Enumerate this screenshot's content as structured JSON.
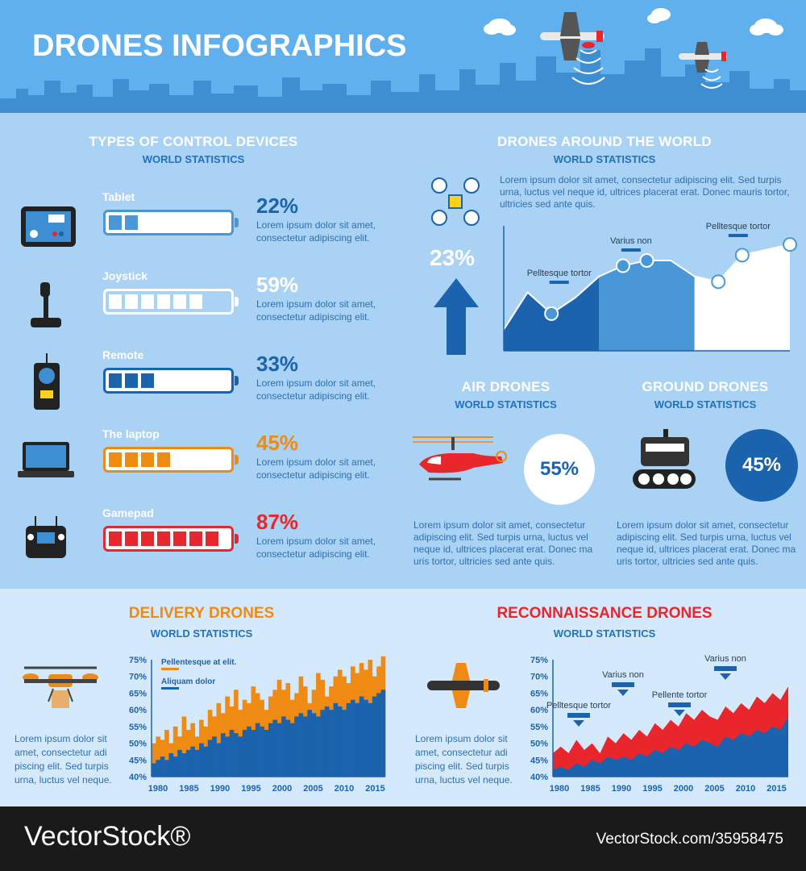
{
  "header": {
    "title": "DRONES INFOGRAPHICS"
  },
  "control": {
    "title": "TYPES OF CONTROL DEVICES",
    "subtitle": "WORLD STATISTICS",
    "items": [
      {
        "label": "Tablet",
        "percent": "22%",
        "value": 22,
        "text1": "Lorem ipsum dolor sit amet,",
        "text2": "consectetur adipiscing elit.",
        "color": "#4a97d8",
        "filled": 2
      },
      {
        "label": "Joystick",
        "percent": "59%",
        "value": 59,
        "text1": "Lorem ipsum dolor sit amet,",
        "text2": "consectetur adipiscing elit.",
        "color": "#ffffff",
        "filled": 6
      },
      {
        "label": "Remote",
        "percent": "33%",
        "value": 33,
        "text1": "Lorem ipsum dolor sit amet,",
        "text2": "consectetur adipiscing elit.",
        "color": "#1c63ad",
        "filled": 3
      },
      {
        "label": "The laptop",
        "percent": "45%",
        "value": 45,
        "text1": "Lorem ipsum dolor sit amet,",
        "text2": "consectetur adipiscing elit.",
        "color": "#ef8a12",
        "filled": 4
      },
      {
        "label": "Gamepad",
        "percent": "87%",
        "value": 87,
        "text1": "Lorem ipsum dolor sit amet,",
        "text2": "consectetur adipiscing elit.",
        "color": "#e8262b",
        "filled": 7
      }
    ]
  },
  "world": {
    "title": "DRONES AROUND THE WORLD",
    "subtitle": "WORLD STATISTICS",
    "percent": "23%",
    "text": [
      "Lorem ipsum dolor sit amet, consectetur adipiscing elit. Sed turpis",
      "urna, luctus vel neque id, ultrices placerat erat. Donec mauris tortor,",
      "ultricies sed ante quis."
    ],
    "annotations": [
      "Pelltesque tortor",
      "Varius non",
      "Pelltesque tortor"
    ]
  },
  "air": {
    "title": "AIR DRONES",
    "subtitle": "WORLD STATISTICS",
    "percent": "55%",
    "value": 55,
    "text": [
      "Lorem ipsum dolor sit amet, consectetur",
      "adipiscing elit. Sed turpis urna, luctus vel",
      "neque id, ultrices placerat erat. Donec ma",
      "uris tortor, ultricies sed ante quis."
    ]
  },
  "ground": {
    "title": "GROUND DRONES",
    "subtitle": "WORLD STATISTICS",
    "percent": "45%",
    "value": 45,
    "text": [
      "Lorem ipsum dolor sit amet, consectetur",
      "adipiscing elit. Sed turpis urna, luctus vel",
      "neque id, ultrices placerat erat. Donec ma",
      "uris tortor, ultricies sed ante quis."
    ]
  },
  "delivery": {
    "title": "DELIVERY DRONES",
    "subtitle": "WORLD STATISTICS",
    "text": [
      "Lorem ipsum dolor sit",
      "amet, consectetur adi",
      "piscing elit. Sed turpis",
      "urna, luctus vel neque."
    ]
  },
  "recon": {
    "title": "RECONNAISSANCE DRONES",
    "subtitle": "WORLD STATISTICS",
    "text": [
      "Lorem ipsum dolor sit",
      "amet, consectetur adi",
      "piscing elit. Sed turpis",
      "urna, luctus vel neque."
    ]
  },
  "footer": {
    "left": "VectorStock®",
    "right": "VectorStock.com/35958475"
  },
  "colors": {
    "blue": "#1c63ad",
    "light_blue": "#4a97d8",
    "orange": "#ef8a12",
    "red": "#e8262b",
    "bg": "#a9d2f4"
  },
  "chart_data": [
    {
      "type": "area",
      "title": "DRONES AROUND THE WORLD",
      "x": [
        0,
        1,
        2,
        3,
        4,
        5,
        6,
        7,
        8,
        9,
        10,
        11,
        12
      ],
      "series": [
        {
          "values": [
            20,
            55,
            35,
            50,
            70,
            80,
            85,
            85,
            70,
            65,
            90,
            95,
            100
          ]
        }
      ]
    },
    {
      "type": "bar",
      "title": "DELIVERY DRONES",
      "ylim": [
        40,
        75
      ],
      "yticks": [
        "75%",
        "70%",
        "65%",
        "60%",
        "55%",
        "50%",
        "45%",
        "40%"
      ],
      "xticks": [
        "1980",
        "1985",
        "1990",
        "1995",
        "2000",
        "2005",
        "2010",
        "2015"
      ],
      "series": [
        {
          "name": "Pellentesque at elit.",
          "color": "#ef8a12",
          "values": [
            50,
            52,
            51,
            54,
            50,
            55,
            52,
            58,
            54,
            56,
            52,
            57,
            55,
            60,
            58,
            62,
            59,
            64,
            61,
            66,
            60,
            63,
            62,
            67,
            65,
            63,
            60,
            64,
            66,
            69,
            66,
            68,
            63,
            65,
            70,
            67,
            62,
            66,
            71,
            69,
            64,
            67,
            70,
            72,
            70,
            68,
            73,
            71,
            74,
            72,
            75,
            70,
            73,
            76
          ]
        },
        {
          "name": "Aliquam dolor",
          "color": "#1c63ad",
          "values": [
            44,
            45,
            46,
            45,
            47,
            46,
            48,
            47,
            48,
            49,
            48,
            50,
            49,
            51,
            52,
            50,
            53,
            52,
            54,
            53,
            52,
            54,
            55,
            54,
            56,
            55,
            54,
            56,
            57,
            56,
            58,
            57,
            56,
            58,
            59,
            58,
            60,
            59,
            58,
            60,
            61,
            60,
            62,
            61,
            60,
            62,
            63,
            62,
            64,
            63,
            62,
            64,
            65,
            66
          ]
        }
      ]
    },
    {
      "type": "area",
      "title": "RECONNAISSANCE DRONES",
      "ylim": [
        40,
        75
      ],
      "yticks": [
        "75%",
        "70%",
        "65%",
        "60%",
        "55%",
        "50%",
        "45%",
        "40%"
      ],
      "xticks": [
        "1980",
        "1985",
        "1990",
        "1995",
        "2000",
        "2005",
        "2010",
        "2015"
      ],
      "annotations": [
        "Pelltesque tortor",
        "Varius non",
        "Pellente tortor",
        "Varius non"
      ],
      "series": [
        {
          "color": "#e8262b",
          "values": [
            47,
            49,
            47,
            51,
            48,
            50,
            47,
            52,
            50,
            53,
            51,
            54,
            52,
            56,
            54,
            57,
            55,
            59,
            57,
            60,
            58,
            57,
            61,
            59,
            62,
            60,
            64,
            62,
            65,
            63,
            67
          ]
        },
        {
          "color": "#1c63ad",
          "values": [
            42,
            43,
            42,
            44,
            43,
            45,
            44,
            46,
            45,
            46,
            45,
            47,
            46,
            48,
            47,
            49,
            48,
            50,
            49,
            51,
            50,
            49,
            52,
            51,
            53,
            52,
            54,
            53,
            55,
            54,
            58
          ]
        }
      ]
    }
  ]
}
